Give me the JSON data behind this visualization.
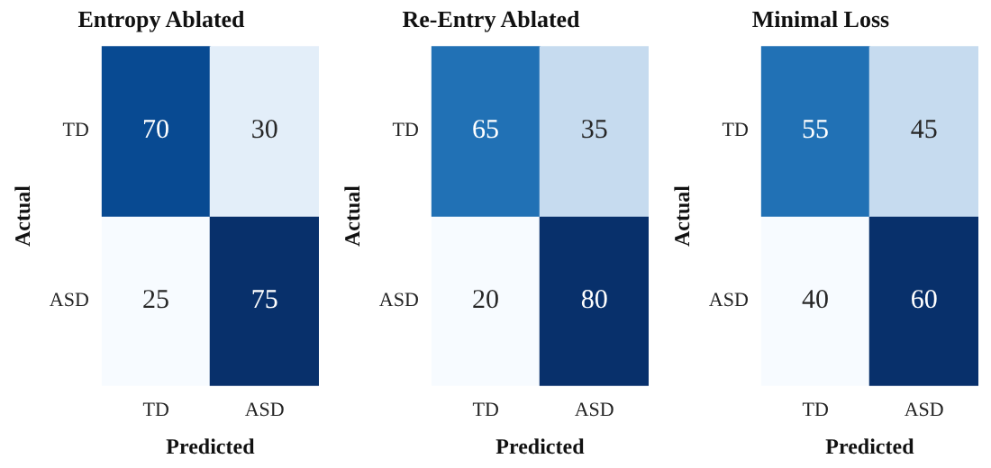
{
  "chart_data": [
    {
      "type": "heatmap",
      "title": "Entropy Ablated",
      "xlabel": "Predicted",
      "ylabel": "Actual",
      "categories": [
        "TD",
        "ASD"
      ],
      "y_categories": [
        "TD",
        "ASD"
      ],
      "cells": [
        [
          70,
          30
        ],
        [
          25,
          75
        ]
      ],
      "data_labels": true
    },
    {
      "type": "heatmap",
      "title": "Re-Entry Ablated",
      "xlabel": "Predicted",
      "ylabel": "Actual",
      "categories": [
        "TD",
        "ASD"
      ],
      "y_categories": [
        "TD",
        "ASD"
      ],
      "cells": [
        [
          65,
          35
        ],
        [
          20,
          80
        ]
      ],
      "data_labels": true
    },
    {
      "type": "heatmap",
      "title": "Minimal Loss",
      "xlabel": "Predicted",
      "ylabel": "Actual",
      "categories": [
        "TD",
        "ASD"
      ],
      "y_categories": [
        "TD",
        "ASD"
      ],
      "cells": [
        [
          55,
          45
        ],
        [
          40,
          60
        ]
      ],
      "data_labels": true
    }
  ]
}
